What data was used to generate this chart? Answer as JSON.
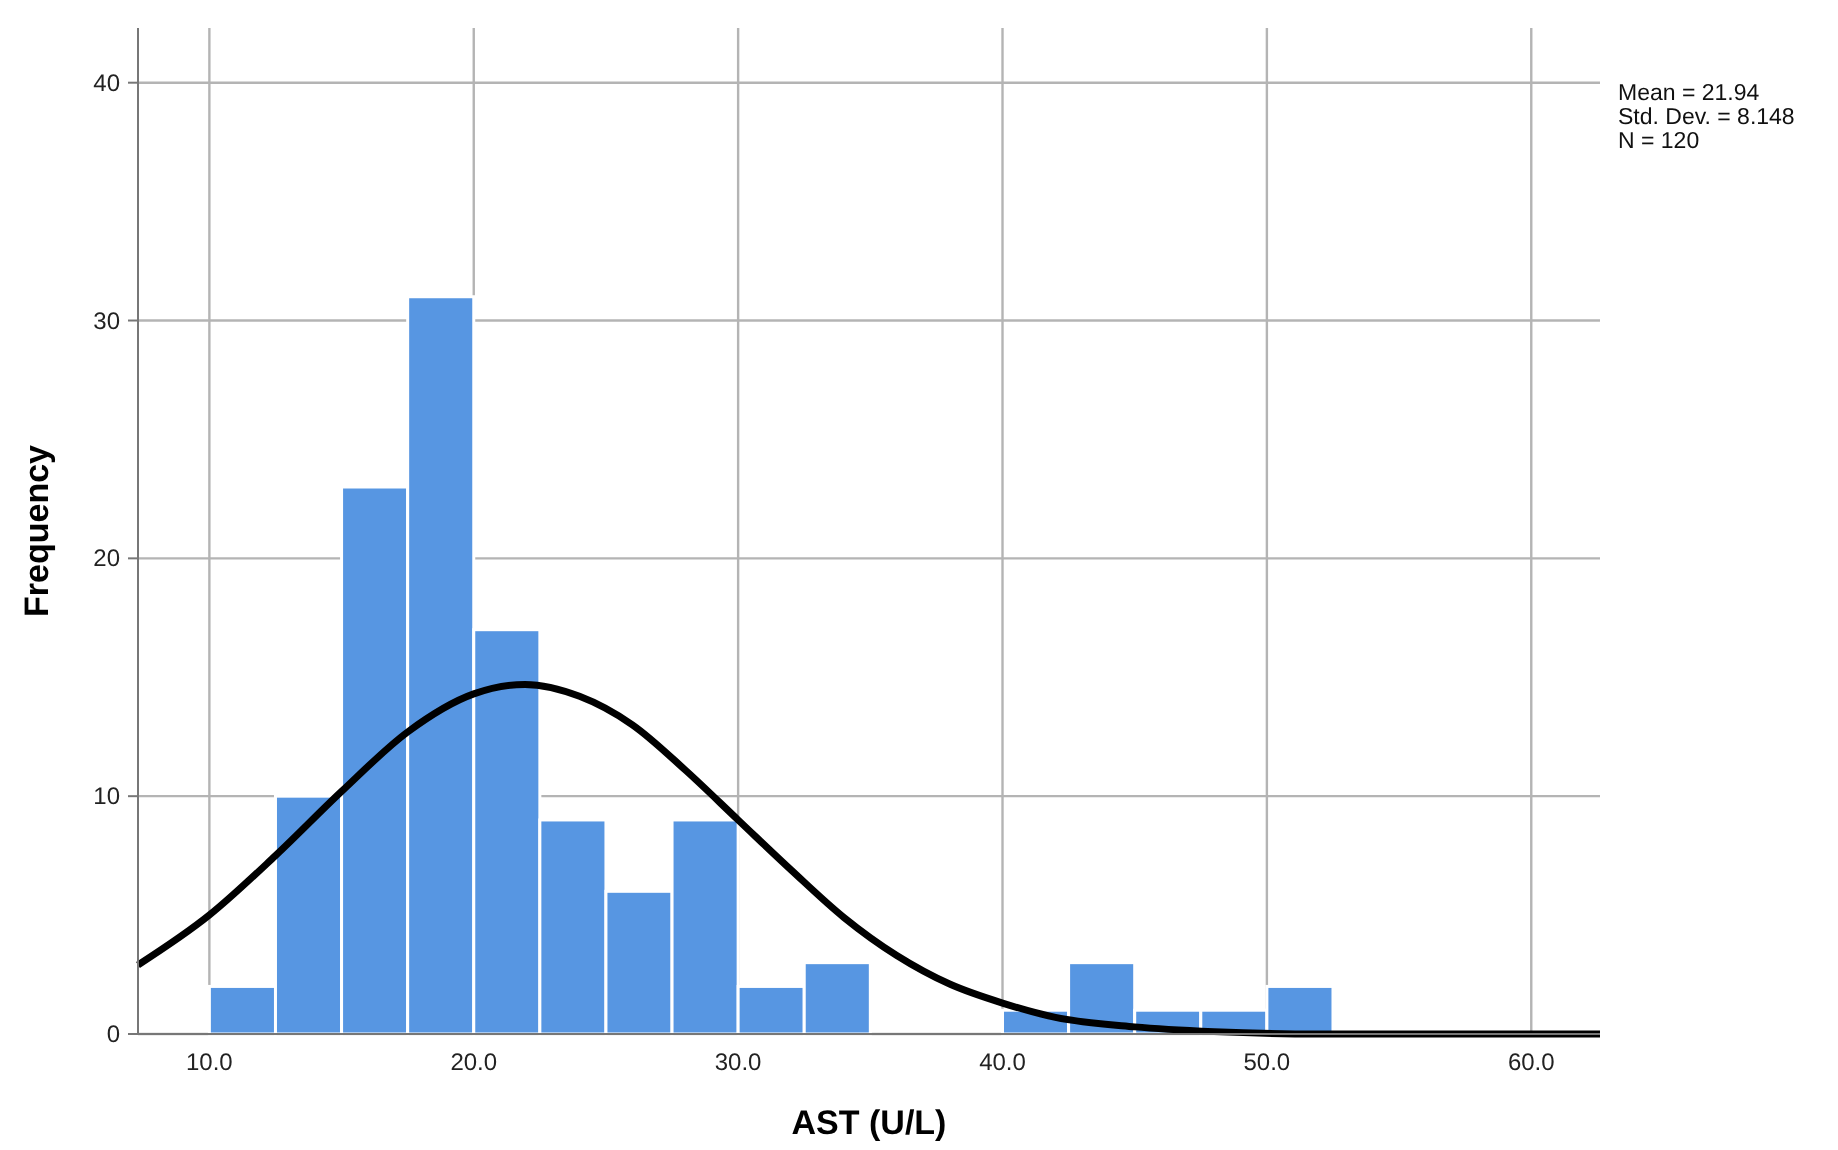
{
  "chart_data": {
    "type": "histogram",
    "xlabel": "AST (U/L)",
    "ylabel": "Frequency",
    "bins": [
      10,
      12.5,
      15,
      17.5,
      20,
      22.5,
      25,
      27.5,
      30,
      32.5,
      35,
      37.5,
      40,
      42.5,
      45,
      47.5,
      50,
      52.5
    ],
    "values": [
      2,
      10,
      23,
      31,
      17,
      9,
      6,
      9,
      2,
      3,
      0,
      0,
      1,
      3,
      1,
      1,
      2
    ],
    "color": "#5796e2",
    "series": [
      {
        "type": "line",
        "color": "#000000",
        "x": [
          7.3,
          10,
          12.5,
          15,
          17.5,
          20,
          21.94,
          24,
          26,
          28,
          30,
          32,
          34,
          36,
          38,
          40,
          42,
          45,
          48,
          52,
          62.6
        ],
        "values": [
          2.9,
          5.0,
          7.5,
          10.2,
          12.7,
          14.3,
          14.7,
          14.2,
          13.0,
          11.1,
          9.0,
          6.9,
          4.9,
          3.3,
          2.1,
          1.3,
          0.7,
          0.3,
          0.1,
          0.0,
          0.0
        ]
      }
    ],
    "xlim": [
      7.3,
      62.6
    ],
    "ylim": [
      0,
      42.3
    ],
    "xticks": [
      {
        "value": 10,
        "label": "10.0"
      },
      {
        "value": 20,
        "label": "20.0"
      },
      {
        "value": 30,
        "label": "30.0"
      },
      {
        "value": 40,
        "label": "40.0"
      },
      {
        "value": 50,
        "label": "50.0"
      },
      {
        "value": 60,
        "label": "60.0"
      }
    ],
    "yticks": [
      0,
      10,
      20,
      30,
      40
    ],
    "grid": true,
    "marker": "none",
    "annotations": [
      "Mean = 21.94",
      "Std. Dev. = 8.148",
      "N = 120"
    ]
  }
}
